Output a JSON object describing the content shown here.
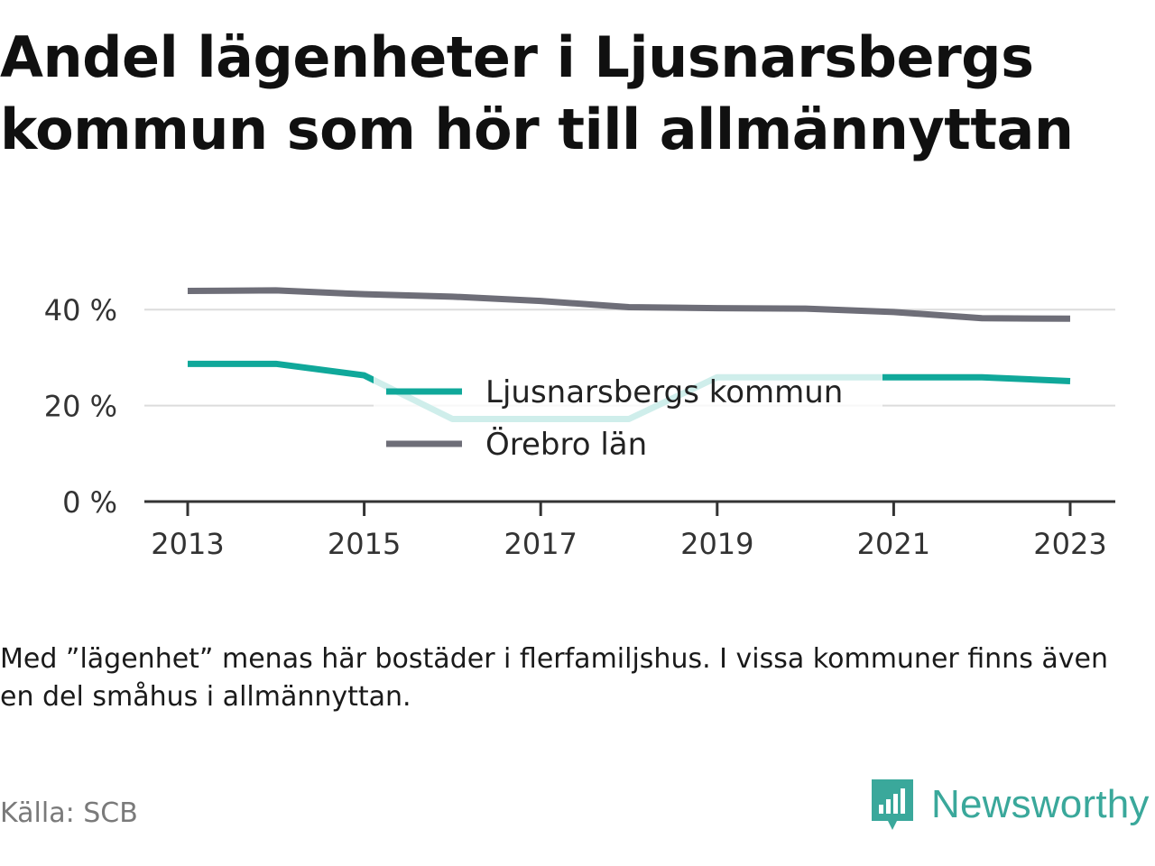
{
  "title_lines": [
    "Andel lägenheter i Ljusnarsbergs",
    "kommun som hör till allmännyttan"
  ],
  "footnote": "Med ”lägenhet” menas här bostäder i flerfamiljshus. I vissa kommuner finns även en del småhus i allmännyttan.",
  "source": "Källa: SCB",
  "brand": {
    "name": "Newsworthy",
    "icon": "newsworthy-logo-icon",
    "color": "#3aa89b"
  },
  "chart_data": {
    "type": "line",
    "title": "Andel lägenheter i Ljusnarsbergs kommun som hör till allmännyttan",
    "x": [
      2013,
      2014,
      2015,
      2016,
      2017,
      2018,
      2019,
      2020,
      2021,
      2022,
      2023
    ],
    "xticks": [
      2013,
      2015,
      2017,
      2019,
      2021,
      2023
    ],
    "xtick_labels": [
      "2013",
      "2015",
      "2017",
      "2019",
      "2021",
      "2023"
    ],
    "ylim": [
      0,
      50
    ],
    "yticks": [
      0,
      20,
      40
    ],
    "ytick_labels": [
      "0 %",
      "20 %",
      "40 %"
    ],
    "grid": true,
    "legend": "center",
    "series": [
      {
        "name": "Ljusnarsbergs kommun",
        "color": "#10a89a",
        "values": [
          28.7,
          28.7,
          26.3,
          17.2,
          17.2,
          17.2,
          25.9,
          25.9,
          25.9,
          25.9,
          25.1
        ]
      },
      {
        "name": "Örebro län",
        "color": "#6e6e78",
        "values": [
          43.9,
          44.0,
          43.2,
          42.7,
          41.8,
          40.5,
          40.3,
          40.2,
          39.5,
          38.2,
          38.1
        ]
      }
    ]
  }
}
